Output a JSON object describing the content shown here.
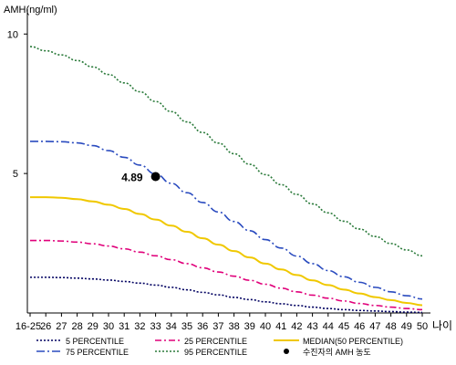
{
  "chart_data": {
    "type": "line",
    "ylabel": "AMH(ng/ml)",
    "xlabel": "나이",
    "ylim": [
      0,
      10.5
    ],
    "yticks": [
      5,
      10
    ],
    "x": [
      "16-25",
      "26",
      "27",
      "28",
      "29",
      "30",
      "31",
      "32",
      "33",
      "34",
      "35",
      "36",
      "37",
      "38",
      "39",
      "40",
      "41",
      "42",
      "43",
      "44",
      "45",
      "46",
      "47",
      "48",
      "49",
      "50"
    ],
    "series": [
      {
        "name": "5 PERCENTILE",
        "color": "#000060",
        "dash": "dot",
        "values": [
          1.28,
          1.28,
          1.27,
          1.25,
          1.22,
          1.18,
          1.13,
          1.07,
          1.0,
          0.92,
          0.83,
          0.74,
          0.65,
          0.56,
          0.48,
          0.4,
          0.33,
          0.27,
          0.21,
          0.16,
          0.12,
          0.09,
          0.07,
          0.05,
          0.03,
          0.02
        ]
      },
      {
        "name": "25 PERCENTILE",
        "color": "#e0007a",
        "dash": "dashdot",
        "values": [
          2.6,
          2.6,
          2.58,
          2.54,
          2.48,
          2.4,
          2.3,
          2.18,
          2.05,
          1.91,
          1.77,
          1.62,
          1.47,
          1.32,
          1.17,
          1.03,
          0.89,
          0.76,
          0.64,
          0.53,
          0.43,
          0.34,
          0.27,
          0.21,
          0.16,
          0.12
        ]
      },
      {
        "name": "MEDIAN(50 PERCENTILE)",
        "color": "#f0c800",
        "dash": "solid",
        "values": [
          4.15,
          4.15,
          4.13,
          4.08,
          4.0,
          3.88,
          3.73,
          3.55,
          3.35,
          3.13,
          2.91,
          2.68,
          2.45,
          2.22,
          1.99,
          1.77,
          1.56,
          1.36,
          1.17,
          1.0,
          0.84,
          0.7,
          0.57,
          0.46,
          0.36,
          0.28
        ]
      },
      {
        "name": "75 PERCENTILE",
        "color": "#2a4bbf",
        "dash": "longdashdot",
        "values": [
          6.15,
          6.15,
          6.14,
          6.1,
          6.0,
          5.82,
          5.58,
          5.3,
          4.98,
          4.65,
          4.31,
          3.96,
          3.62,
          3.28,
          2.95,
          2.63,
          2.33,
          2.04,
          1.77,
          1.52,
          1.3,
          1.1,
          0.92,
          0.76,
          0.62,
          0.5
        ]
      },
      {
        "name": "95 PERCENTILE",
        "color": "#2a7a3a",
        "dash": "dot",
        "values": [
          9.55,
          9.4,
          9.25,
          9.05,
          8.82,
          8.55,
          8.25,
          7.93,
          7.58,
          7.22,
          6.85,
          6.47,
          6.09,
          5.71,
          5.33,
          4.96,
          4.6,
          4.25,
          3.91,
          3.59,
          3.29,
          3.01,
          2.74,
          2.49,
          2.26,
          2.05
        ]
      }
    ],
    "highlight_point": {
      "name": "수진자의 AMH 농도",
      "x": "33",
      "y": 4.89,
      "label": "4.89",
      "color": "#000000"
    },
    "legend_order": [
      "5 PERCENTILE",
      "25 PERCENTILE",
      "MEDIAN(50 PERCENTILE)",
      "75 PERCENTILE",
      "95 PERCENTILE",
      "수진자의 AMH 농도"
    ],
    "legend_position": "bottom",
    "grid": false
  }
}
